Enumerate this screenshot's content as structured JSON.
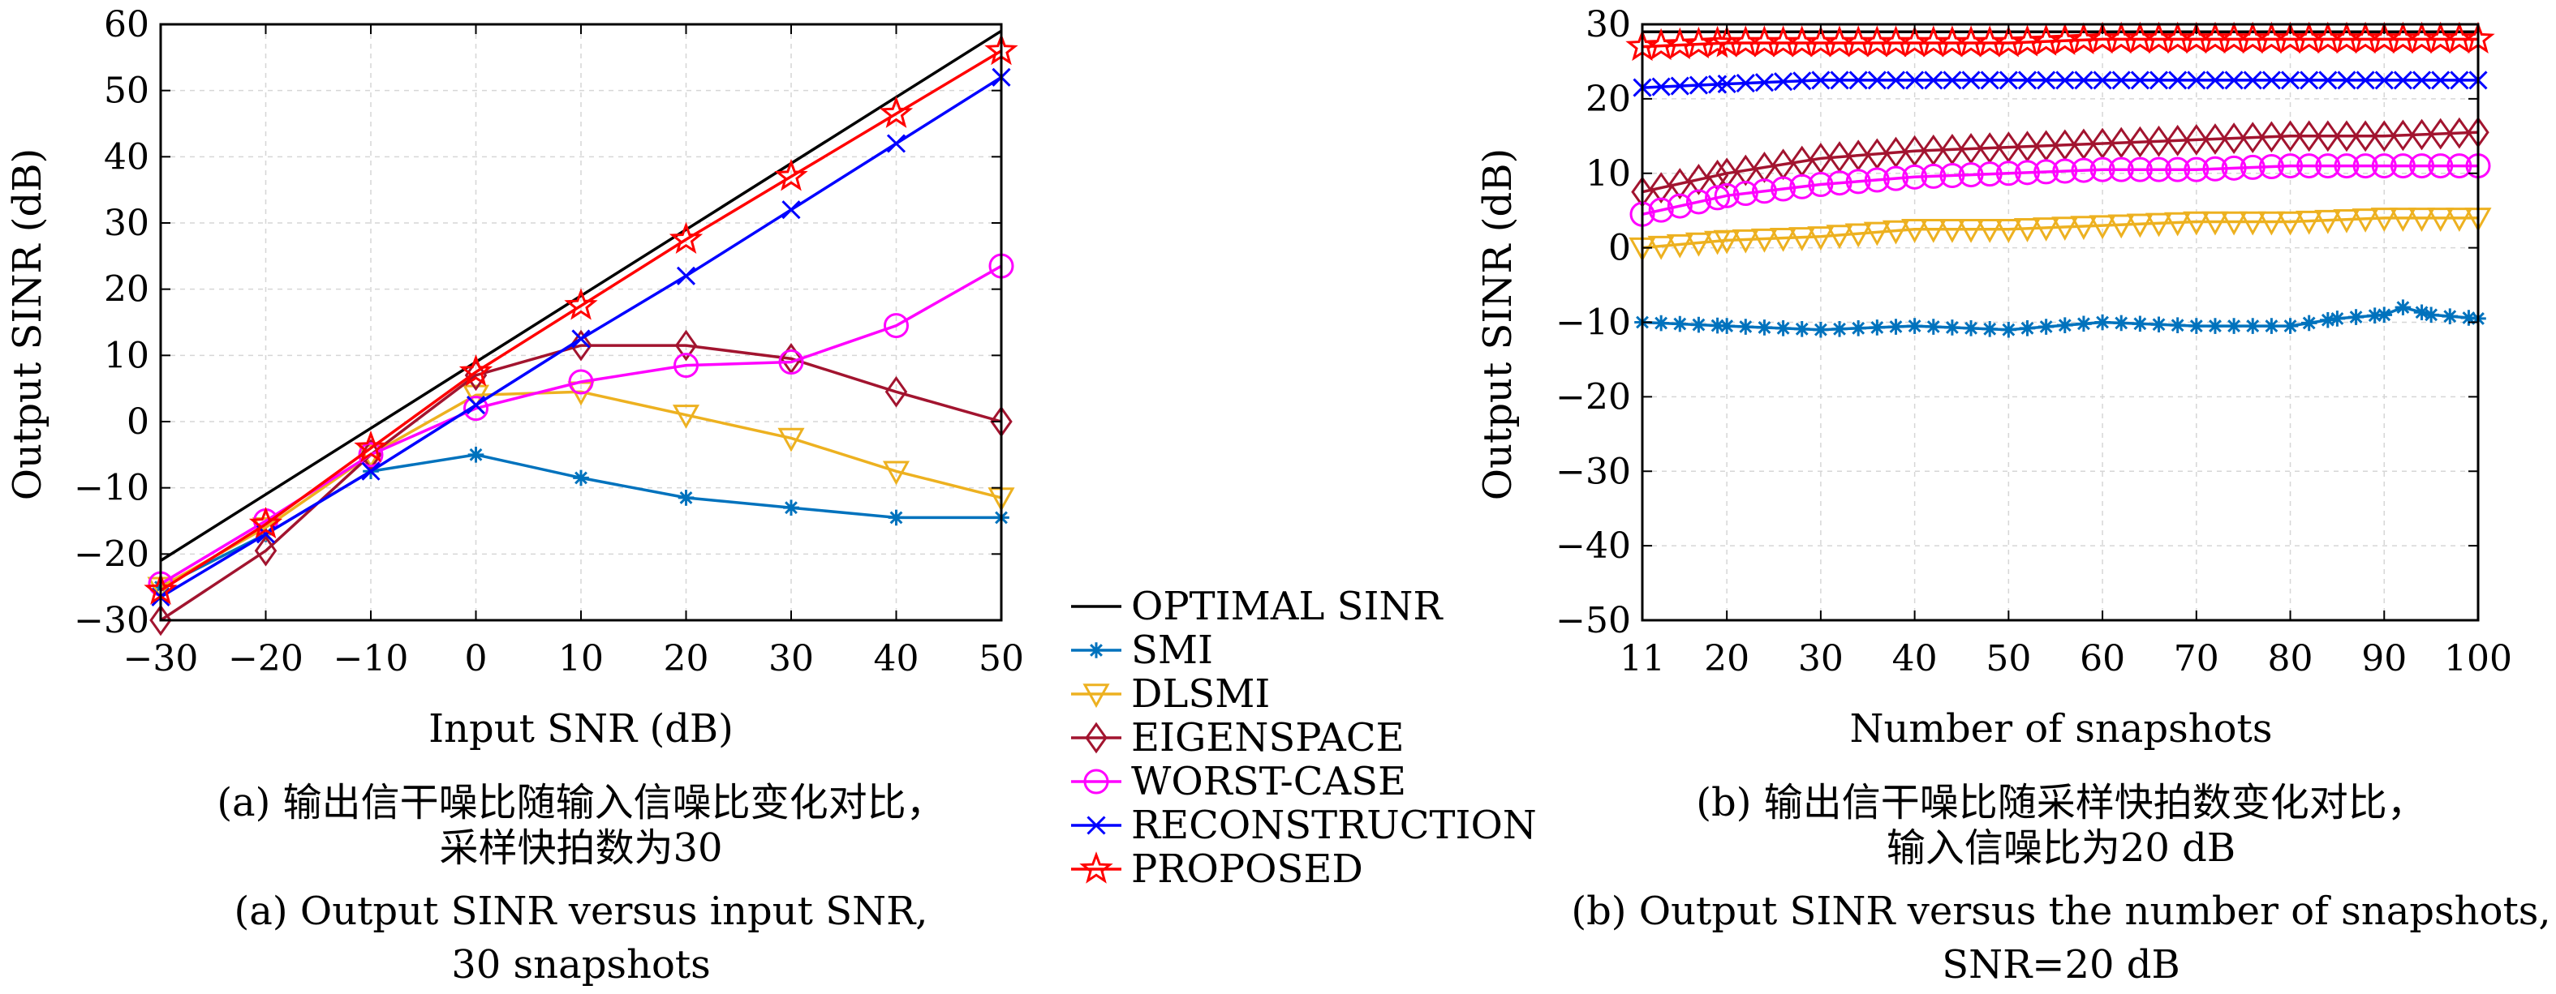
{
  "legend": [
    {
      "label": "OPTIMAL SINR",
      "color": "#000000",
      "marker": "none"
    },
    {
      "label": "SMI",
      "color": "#0072BD",
      "marker": "star"
    },
    {
      "label": "DLSMI",
      "color": "#EDB120",
      "marker": "triangle-down"
    },
    {
      "label": "EIGENSPACE",
      "color": "#A2142F",
      "marker": "diamond"
    },
    {
      "label": "WORST-CASE",
      "color": "#FF00FF",
      "marker": "circle"
    },
    {
      "label": "RECONSTRUCTION",
      "color": "#0000FF",
      "marker": "x"
    },
    {
      "label": "PROPOSED",
      "color": "#FF0000",
      "marker": "pentagram"
    }
  ],
  "captions": {
    "a_cn_1": "(a) 输出信干噪比随输入信噪比变化对比，",
    "a_cn_2": "采样快拍数为30",
    "a_en_1": "(a) Output SINR versus input SNR,",
    "a_en_2": "30 snapshots",
    "b_cn_1": "(b) 输出信干噪比随采样快拍数变化对比，",
    "b_cn_2": "输入信噪比为20 dB",
    "b_en_1": "(b) Output SINR versus the number of snapshots,",
    "b_en_2": "SNR=20 dB"
  },
  "chart_data": [
    {
      "type": "line",
      "xlabel": "Input SNR (dB)",
      "ylabel": "Output SINR (dB)",
      "xlim": [
        -30,
        50
      ],
      "ylim": [
        -30,
        60
      ],
      "xticks": [
        -30,
        -20,
        -10,
        0,
        10,
        20,
        30,
        40,
        50
      ],
      "yticks": [
        -30,
        -20,
        -10,
        0,
        10,
        20,
        30,
        40,
        50,
        60
      ],
      "x": [
        -30,
        -20,
        -10,
        0,
        10,
        20,
        30,
        40,
        50
      ],
      "grid": true,
      "series": [
        {
          "name": "OPTIMAL SINR",
          "values": [
            -21,
            -11,
            -1,
            9,
            19,
            29,
            39,
            49,
            59
          ]
        },
        {
          "name": "SMI",
          "values": [
            -25,
            -17,
            -7.5,
            -5,
            -8.5,
            -11.5,
            -13,
            -14.5,
            -14.5
          ]
        },
        {
          "name": "DLSMI",
          "values": [
            -25,
            -16,
            -5,
            4,
            4.5,
            1,
            -2.5,
            -7.5,
            -11.5
          ]
        },
        {
          "name": "EIGENSPACE",
          "values": [
            -30,
            -19.5,
            -5,
            7,
            11.5,
            11.5,
            9.5,
            4.5,
            0
          ]
        },
        {
          "name": "WORST-CASE",
          "values": [
            -24.5,
            -15,
            -5,
            2,
            6,
            8.5,
            9,
            14.5,
            23.5
          ]
        },
        {
          "name": "RECONSTRUCTION",
          "values": [
            -26.5,
            -17,
            -7.5,
            2.5,
            12.5,
            22,
            32,
            42,
            52
          ]
        },
        {
          "name": "PROPOSED",
          "values": [
            -25.5,
            -15.5,
            -4,
            7.5,
            17.5,
            27.5,
            37,
            46.5,
            56
          ]
        }
      ]
    },
    {
      "type": "line",
      "xlabel": "Number of snapshots",
      "ylabel": "Output SINR (dB)",
      "xlim": [
        11,
        100
      ],
      "ylim": [
        -50,
        30
      ],
      "xticks": [
        11,
        20,
        30,
        40,
        50,
        60,
        70,
        80,
        90,
        100
      ],
      "yticks": [
        -50,
        -40,
        -30,
        -20,
        -10,
        0,
        10,
        20,
        30
      ],
      "grid": true,
      "series": [
        {
          "name": "OPTIMAL SINR",
          "x": [
            11,
            100
          ],
          "values": [
            29,
            29
          ]
        },
        {
          "name": "SMI",
          "x": [
            11,
            20,
            30,
            40,
            50,
            60,
            70,
            80,
            85,
            90,
            92,
            95,
            100
          ],
          "values": [
            -10,
            -10.5,
            -11,
            -10.5,
            -11,
            -10,
            -10.5,
            -10.5,
            -9.5,
            -9,
            -8,
            -9,
            -9.5
          ]
        },
        {
          "name": "DLSMI",
          "x": [
            11,
            20,
            30,
            40,
            50,
            60,
            70,
            80,
            90,
            100
          ],
          "values": [
            0,
            1,
            1.5,
            2.5,
            2.5,
            3,
            3.5,
            3.5,
            4,
            4
          ]
        },
        {
          "name": "EIGENSPACE",
          "x": [
            11,
            20,
            30,
            40,
            50,
            60,
            70,
            80,
            90,
            100
          ],
          "values": [
            7.5,
            10,
            12,
            13,
            13.5,
            14,
            14.5,
            15,
            15,
            15.5
          ]
        },
        {
          "name": "WORST-CASE",
          "x": [
            11,
            20,
            30,
            40,
            50,
            60,
            70,
            80,
            90,
            100
          ],
          "values": [
            4.5,
            7,
            8.5,
            9.5,
            10,
            10.5,
            10.5,
            11,
            11,
            11
          ]
        },
        {
          "name": "RECONSTRUCTION",
          "x": [
            11,
            20,
            30,
            40,
            50,
            60,
            70,
            80,
            90,
            100
          ],
          "values": [
            21.5,
            22,
            22.5,
            22.5,
            22.5,
            22.5,
            22.5,
            22.5,
            22.5,
            22.5
          ]
        },
        {
          "name": "PROPOSED",
          "x": [
            11,
            20,
            30,
            40,
            50,
            60,
            70,
            80,
            90,
            100
          ],
          "values": [
            27,
            27.5,
            27.5,
            27.5,
            27.5,
            28,
            28,
            28,
            28,
            28
          ]
        }
      ]
    }
  ]
}
